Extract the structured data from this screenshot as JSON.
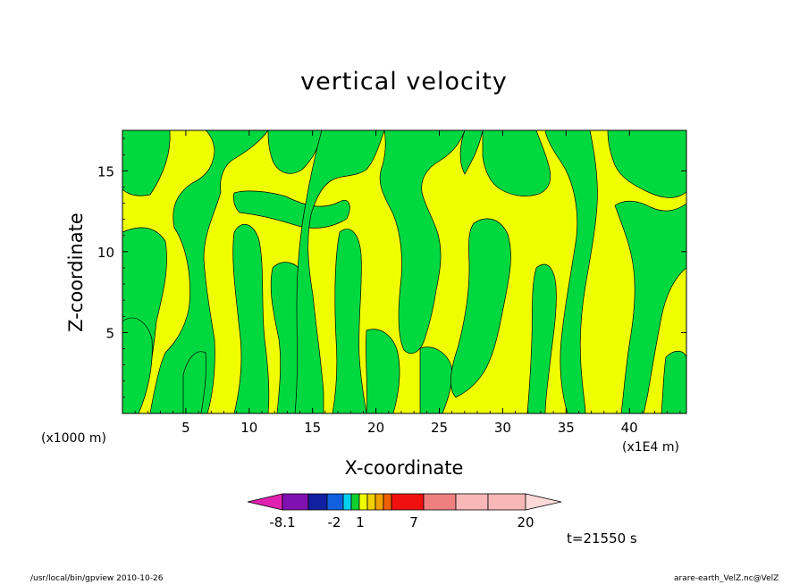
{
  "chart_data": {
    "type": "contour",
    "title": "vertical velocity",
    "xlabel": "X-coordinate",
    "ylabel": "Z-coordinate",
    "x_unit_note": "(x1000 m)",
    "x_scale_note": "(x1E4 m)",
    "xlim": [
      0,
      44.5
    ],
    "ylim": [
      0,
      17.5
    ],
    "x_ticks": [
      5,
      10,
      15,
      20,
      25,
      30,
      35,
      40
    ],
    "y_ticks": [
      5,
      10,
      15
    ],
    "colorbar": {
      "tick_labels": [
        "-8.1",
        "-2",
        "1",
        "7",
        "20"
      ],
      "colors": [
        "#e020b0",
        "#8010b0",
        "#1020a0",
        "#1060e0",
        "#00d0f0",
        "#10d030",
        "#f0ff00",
        "#f0d000",
        "#f0a000",
        "#f06000",
        "#f01010",
        "#f08080",
        "#f8b8b8",
        "#ffd8d8"
      ]
    },
    "dominant_levels": {
      "green": "#00d840",
      "yellow": "#f0ff00"
    }
  },
  "annotation": {
    "time": "t=21550 s"
  },
  "footer": {
    "left": "/usr/local/bin/gpview   2010-10-26",
    "right": "arare-earth_VelZ.nc@VelZ"
  }
}
